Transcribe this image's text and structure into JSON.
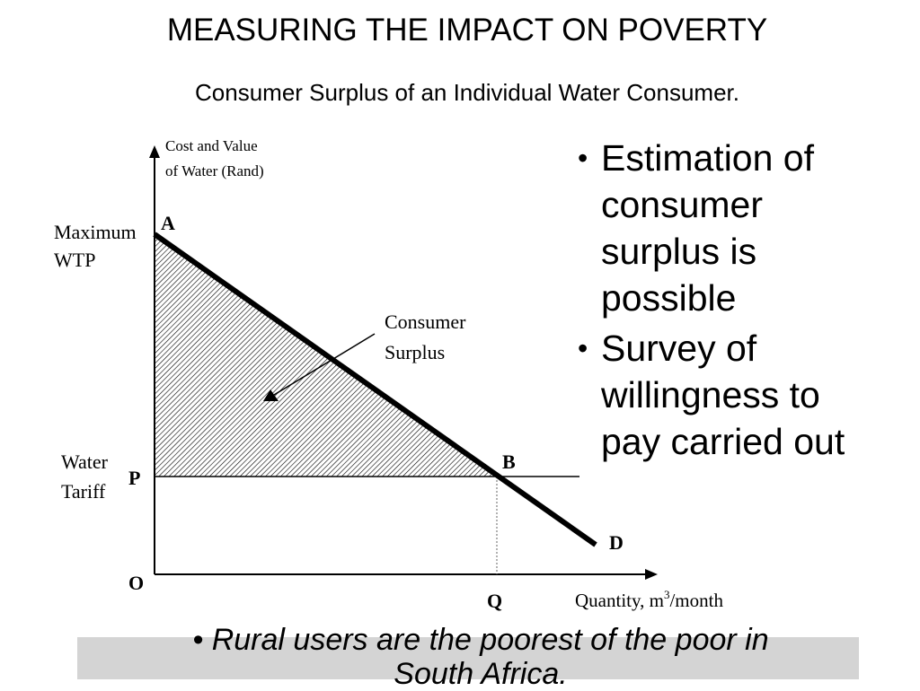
{
  "slide": {
    "title": "MEASURING THE IMPACT ON POVERTY",
    "subtitle": "Consumer Surplus of an Individual Water Consumer."
  },
  "diagram": {
    "y_axis_label_line1": "Cost and Value",
    "y_axis_label_line2": "of Water (Rand)",
    "x_axis_label_prefix": "Quantity, m",
    "x_axis_label_superscript": "3",
    "x_axis_label_suffix": "/month",
    "max_wtp_line1": "Maximum",
    "max_wtp_line2": "WTP",
    "water_tariff_line1": "Water",
    "water_tariff_line2": "Tariff",
    "point_a": "A",
    "point_b": "B",
    "point_d": "D",
    "point_p": "P",
    "point_q": "Q",
    "origin": "O",
    "consumer_surplus_line1": "Consumer",
    "consumer_surplus_line2": "Surplus"
  },
  "bullets": [
    "Estimation of consumer surplus is possible",
    "Survey of willingness to pay carried out"
  ],
  "bullet_lines": [
    [
      "Estimation of",
      "consumer",
      "surplus is",
      "possible"
    ],
    [
      "Survey of",
      "willingness to",
      "pay carried out"
    ]
  ],
  "footer_bullet": "Rural users are the poorest of the poor in South Africa.",
  "footer_lines": [
    "Rural users are the poorest of the poor in",
    "South Africa."
  ]
}
